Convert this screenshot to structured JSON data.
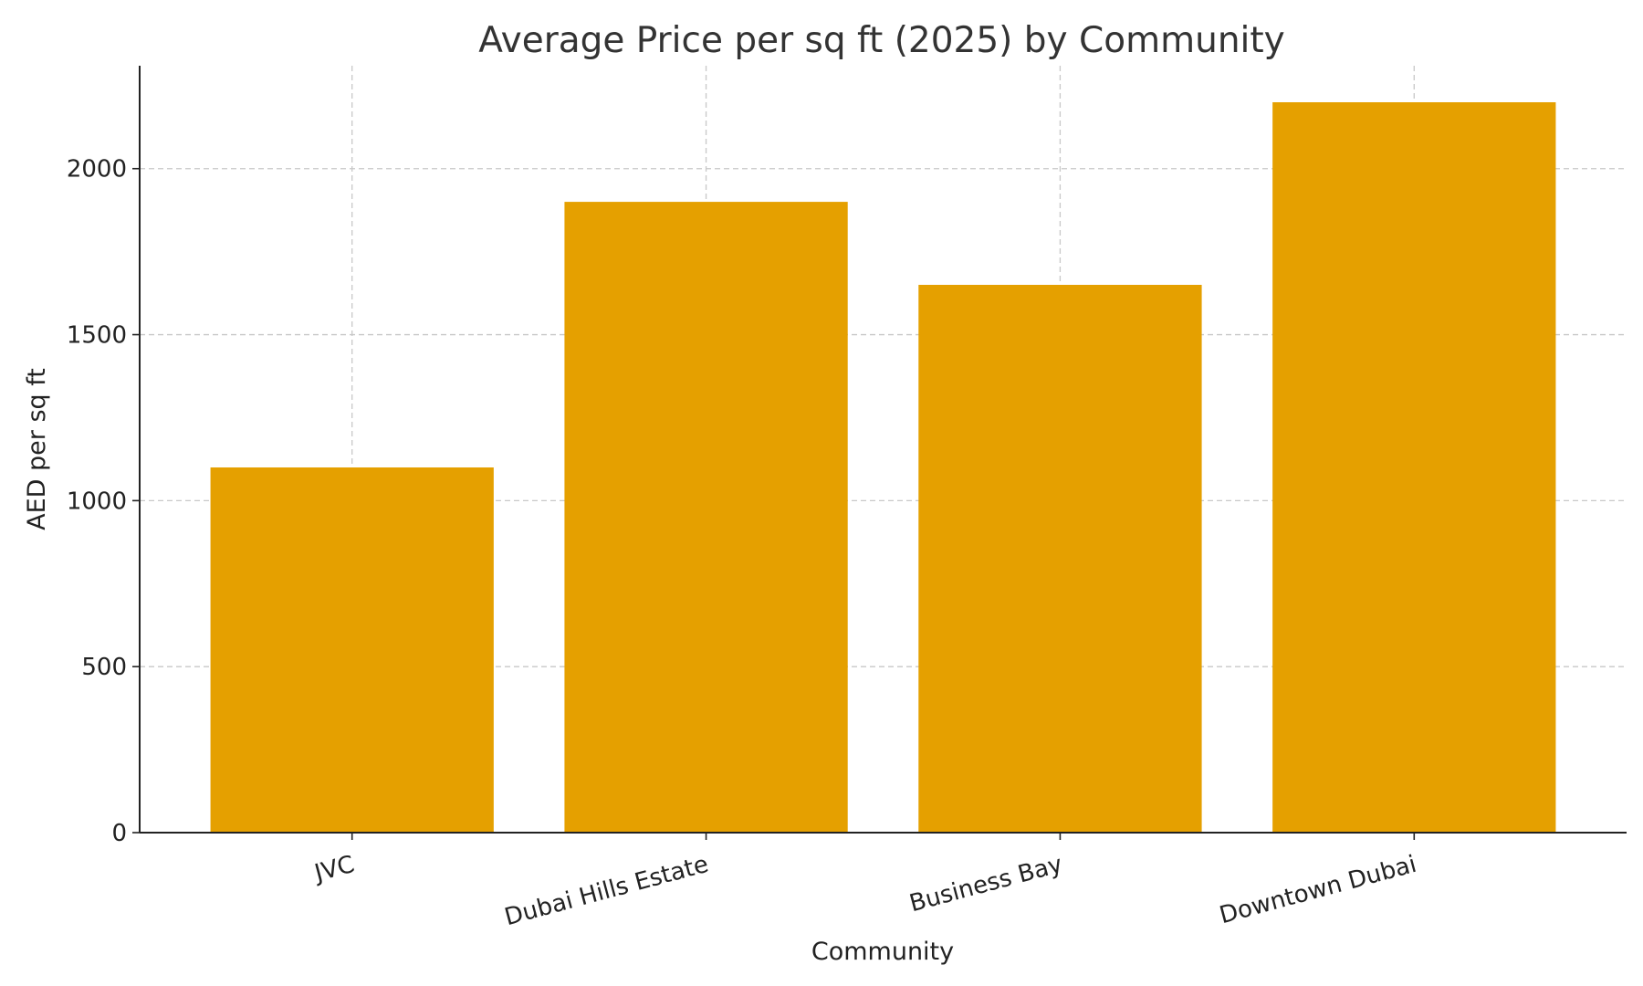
{
  "chart_data": {
    "type": "bar",
    "title": "Average Price per sq ft (2025) by Community",
    "xlabel": "Community",
    "ylabel": "AED per sq ft",
    "categories": [
      "JVC",
      "Dubai Hills Estate",
      "Business Bay",
      "Downtown Dubai"
    ],
    "values": [
      1100,
      1900,
      1650,
      2200
    ],
    "ylim": [
      0,
      2310
    ],
    "yticks": [
      0,
      500,
      1000,
      1500,
      2000
    ],
    "grid": true,
    "bar_color": "#E5A000",
    "tick_label_rotation_deg": -15
  }
}
